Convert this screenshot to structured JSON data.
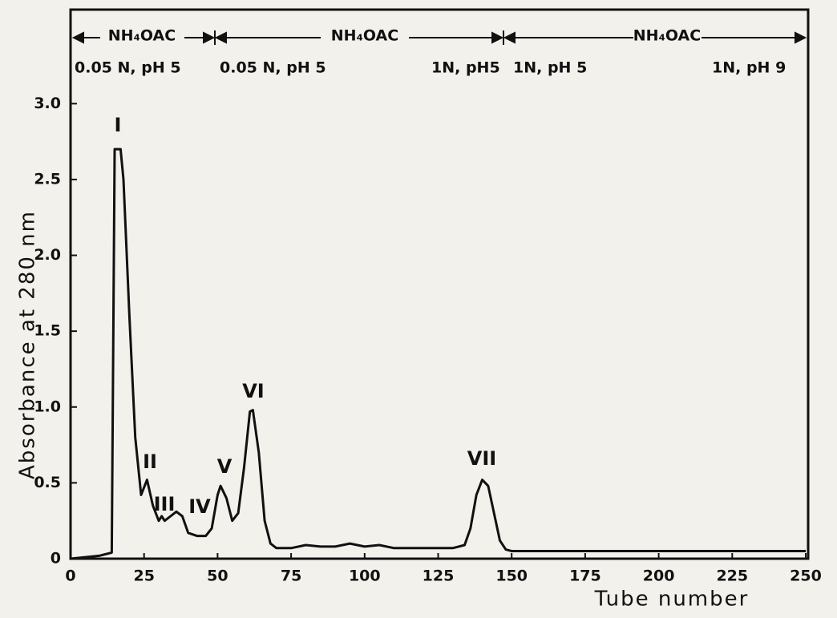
{
  "chart_data": {
    "type": "line",
    "x_label": "Tube number",
    "y_label": "Absorbance at 280 nm",
    "x": [
      0,
      10,
      14,
      15,
      17,
      18,
      20,
      22,
      24,
      26,
      28,
      30,
      31,
      32,
      34,
      36,
      38,
      40,
      43,
      46,
      48,
      50,
      51,
      53,
      55,
      57,
      59,
      61,
      62,
      64,
      66,
      68,
      70,
      75,
      80,
      85,
      90,
      95,
      100,
      105,
      110,
      120,
      130,
      134,
      136,
      138,
      140,
      142,
      144,
      146,
      148,
      150,
      200,
      250
    ],
    "values": [
      0.0,
      0.02,
      0.04,
      2.7,
      2.7,
      2.5,
      1.6,
      0.8,
      0.42,
      0.52,
      0.35,
      0.25,
      0.28,
      0.25,
      0.28,
      0.31,
      0.28,
      0.17,
      0.15,
      0.15,
      0.2,
      0.42,
      0.48,
      0.4,
      0.25,
      0.3,
      0.6,
      0.97,
      0.98,
      0.7,
      0.25,
      0.1,
      0.07,
      0.07,
      0.09,
      0.08,
      0.08,
      0.1,
      0.08,
      0.09,
      0.07,
      0.07,
      0.07,
      0.09,
      0.2,
      0.42,
      0.52,
      0.48,
      0.3,
      0.12,
      0.06,
      0.05,
      0.05,
      0.05
    ],
    "color": "#111111",
    "xlim": [
      0,
      250
    ],
    "xticks": [
      0,
      25,
      50,
      75,
      100,
      125,
      150,
      175,
      200,
      225,
      250
    ],
    "ylim": [
      0,
      3.62
    ],
    "yticks": [
      0,
      0.5,
      {
        "value": 1,
        "label": "1.0"
      },
      1.5,
      {
        "value": 2,
        "label": "2.0"
      },
      2.5,
      {
        "value": 3,
        "label": "3.0"
      }
    ],
    "peak_labels": [
      "I",
      "II",
      "III",
      "IV",
      "V",
      "VI",
      "VII"
    ],
    "buffers": [
      "NH₄OAC",
      "NH₄OAC",
      "NH₄OAC"
    ],
    "conditions": [
      "0.05 N, pH 5",
      "0.05 N, pH 5",
      "1N, pH5",
      "1N, pH 5",
      "1N, pH 9"
    ]
  }
}
